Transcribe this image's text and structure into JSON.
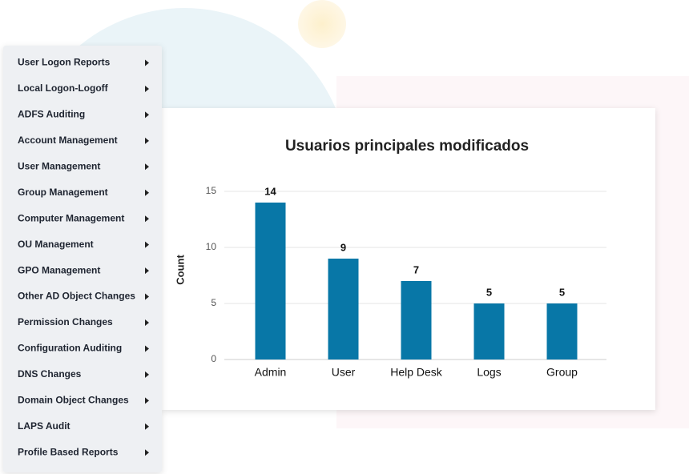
{
  "menu": {
    "items": [
      "User Logon Reports",
      "Local Logon-Logoff",
      "ADFS Auditing",
      "Account Management",
      "User Management",
      "Group Management",
      "Computer Management",
      "OU Management",
      "GPO Management",
      "Other AD Object Changes",
      "Permission Changes",
      "Configuration Auditing",
      "DNS Changes",
      "Domain Object Changes",
      "LAPS Audit",
      "Profile Based Reports"
    ]
  },
  "chart_data": {
    "type": "bar",
    "title": "Usuarios principales modificados",
    "y_label": "Count",
    "categories": [
      "Admin",
      "User",
      "Help Desk",
      "Logs",
      "Group"
    ],
    "values": [
      14,
      9,
      7,
      5,
      5
    ],
    "color": "#0877a7",
    "ylim": [
      0,
      15
    ],
    "yticks": [
      0,
      5,
      10,
      15
    ],
    "grid": true
  }
}
